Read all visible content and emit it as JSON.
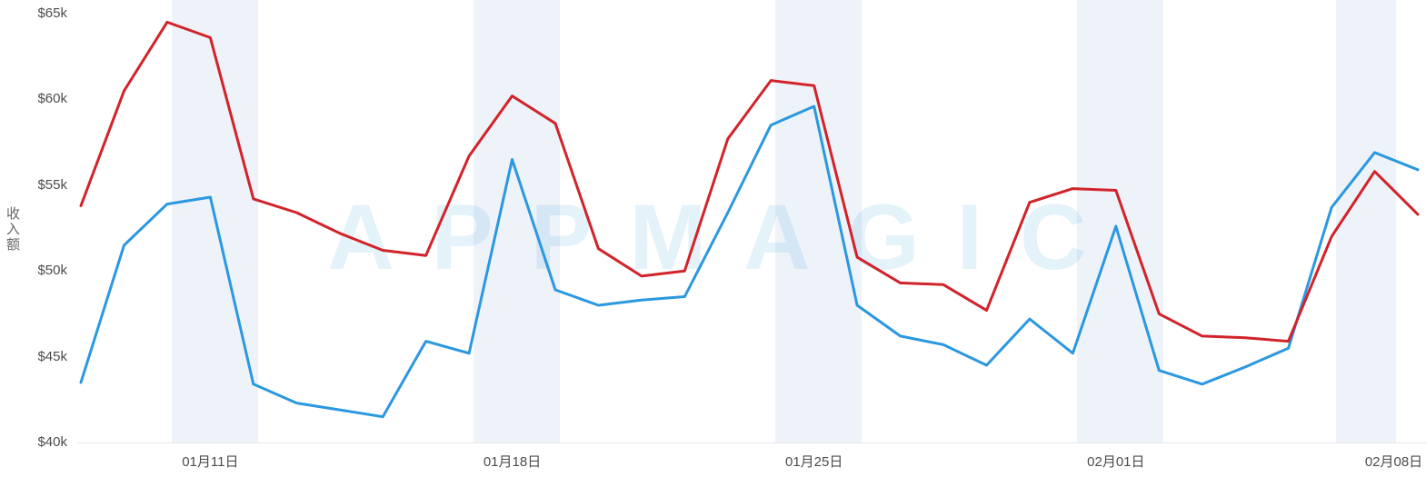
{
  "watermark": "APPMAGIC",
  "chart_data": {
    "type": "line",
    "title": "",
    "xlabel": "",
    "ylabel": "收入额",
    "ylim": [
      40,
      65
    ],
    "y_ticks": [
      "$65k",
      "$60k",
      "$55k",
      "$50k",
      "$45k",
      "$40k"
    ],
    "y_tick_values": [
      65,
      60,
      55,
      50,
      45,
      40
    ],
    "num_points": 32,
    "x_tick_labels": [
      {
        "index": 3,
        "label": "01月11日"
      },
      {
        "index": 10,
        "label": "01月18日"
      },
      {
        "index": 17,
        "label": "01月25日"
      },
      {
        "index": 24,
        "label": "02月01日"
      },
      {
        "index": 31,
        "label": "02月08日"
      }
    ],
    "grid": false,
    "legend": "none",
    "series": [
      {
        "name": "series-blue",
        "color": "#2b98e0",
        "values": [
          43.5,
          51.5,
          53.9,
          54.3,
          43.4,
          42.3,
          41.9,
          41.5,
          45.9,
          45.2,
          56.5,
          48.9,
          48.0,
          48.3,
          48.5,
          53.4,
          58.5,
          59.6,
          48.0,
          46.2,
          45.7,
          44.5,
          47.2,
          45.2,
          52.6,
          44.2,
          43.4,
          44.4,
          45.5,
          53.7,
          56.9,
          55.9
        ]
      },
      {
        "name": "series-red",
        "color": "#d1232a",
        "values": [
          53.8,
          60.5,
          64.5,
          63.6,
          54.2,
          53.4,
          52.2,
          51.2,
          50.9,
          56.7,
          60.2,
          58.6,
          51.3,
          49.7,
          50.0,
          57.7,
          61.1,
          60.8,
          50.8,
          49.3,
          49.2,
          47.7,
          54.0,
          54.8,
          54.7,
          47.5,
          46.2,
          46.1,
          45.9,
          52.0,
          55.8,
          53.3
        ]
      }
    ],
    "weekend_bands": [
      [
        2.1,
        4.1
      ],
      [
        9.1,
        11.1
      ],
      [
        16.1,
        18.1
      ],
      [
        23.1,
        25.1
      ],
      [
        29.1,
        30.5
      ]
    ],
    "band_color": "#eef3f9"
  }
}
